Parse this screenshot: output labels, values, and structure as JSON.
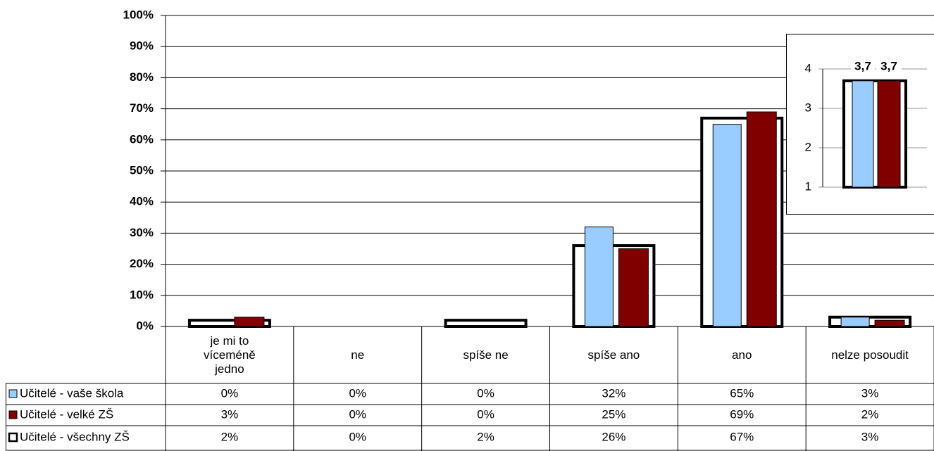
{
  "chart_data": [
    {
      "type": "bar",
      "categories": [
        "je mi to víceméně jedno",
        "ne",
        "spíše ne",
        "spíše ano",
        "ano",
        "nelze posoudit"
      ],
      "series": [
        {
          "name": "Učitelé - vaše škola",
          "color": "#99ccff",
          "values": [
            0,
            0,
            0,
            32,
            65,
            3
          ],
          "value_labels": [
            "0%",
            "0%",
            "0%",
            "32%",
            "65%",
            "3%"
          ]
        },
        {
          "name": "Učitelé - velké ZŠ",
          "color": "#800000",
          "values": [
            3,
            0,
            0,
            25,
            69,
            2
          ],
          "value_labels": [
            "3%",
            "0%",
            "0%",
            "25%",
            "69%",
            "2%"
          ]
        },
        {
          "name": "Učitelé - všechny ZŠ",
          "color": "#ffffff",
          "edgecolor": "#000000",
          "values": [
            2,
            0,
            2,
            26,
            67,
            3
          ],
          "value_labels": [
            "2%",
            "0%",
            "2%",
            "26%",
            "67%",
            "3%"
          ]
        }
      ],
      "ylim": [
        0,
        100
      ],
      "yticks": [
        {
          "value": 0,
          "label": "0%"
        },
        {
          "value": 10,
          "label": "10%"
        },
        {
          "value": 20,
          "label": "20%"
        },
        {
          "value": 30,
          "label": "30%"
        },
        {
          "value": 40,
          "label": "40%"
        },
        {
          "value": 50,
          "label": "50%"
        },
        {
          "value": 60,
          "label": "60%"
        },
        {
          "value": 70,
          "label": "70%"
        },
        {
          "value": 80,
          "label": "80%"
        },
        {
          "value": 90,
          "label": "90%"
        },
        {
          "value": 100,
          "label": "100%"
        }
      ],
      "grid": true
    },
    {
      "type": "bar",
      "categories": [
        null
      ],
      "series": [
        {
          "color": "#99ccff",
          "values": [
            3.7
          ],
          "value_labels": [
            "3,7"
          ]
        },
        {
          "color": "#800000",
          "values": [
            3.7
          ],
          "value_labels": [
            "3,7"
          ]
        },
        {
          "color": "#ffffff",
          "edgecolor": "#000000",
          "values": [
            3.7
          ]
        }
      ],
      "ylim": [
        1,
        4
      ],
      "yticks": [
        1,
        2,
        3,
        4
      ],
      "grid": true
    }
  ]
}
